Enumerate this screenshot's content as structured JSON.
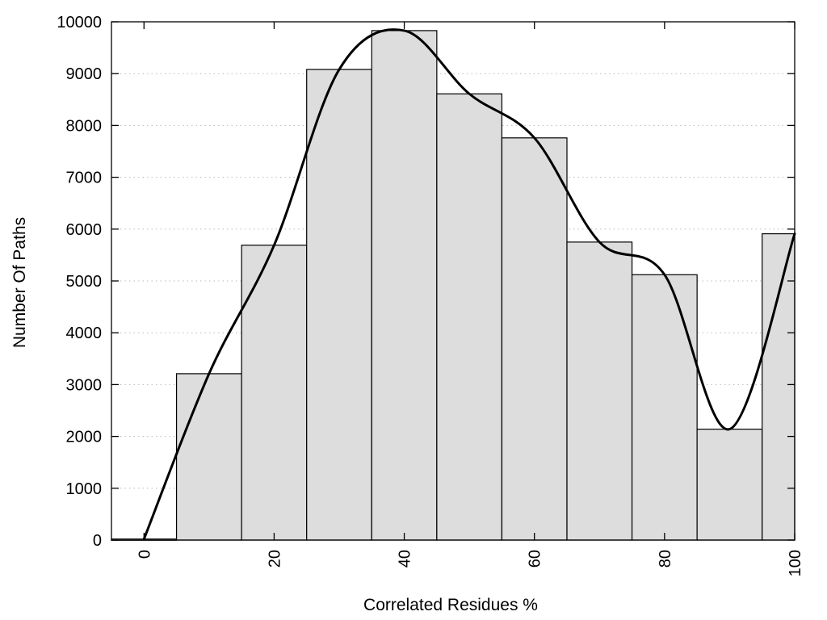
{
  "chart_data": {
    "type": "bar",
    "xlabel": "Correlated Residues %",
    "ylabel": "Number Of Paths",
    "xlim": [
      -5,
      100
    ],
    "ylim": [
      0,
      10000
    ],
    "grid": "horizontal dotted",
    "bar_width": 10,
    "bars": [
      {
        "x": 0,
        "value": 20
      },
      {
        "x": 10,
        "value": 3210
      },
      {
        "x": 20,
        "value": 5690
      },
      {
        "x": 30,
        "value": 9080
      },
      {
        "x": 40,
        "value": 9830
      },
      {
        "x": 50,
        "value": 8610
      },
      {
        "x": 60,
        "value": 7760
      },
      {
        "x": 70,
        "value": 5750
      },
      {
        "x": 80,
        "value": 5120
      },
      {
        "x": 90,
        "value": 2140
      },
      {
        "x": 100,
        "value": 5910
      }
    ],
    "curve": {
      "type": "line",
      "smooth": true,
      "x": [
        0,
        10,
        20,
        30,
        40,
        50,
        60,
        70,
        80,
        90,
        100
      ],
      "y": [
        20,
        3210,
        5690,
        9080,
        9830,
        8610,
        7760,
        5750,
        5120,
        2140,
        5910
      ]
    },
    "xticks": [
      "0",
      "20",
      "40",
      "60",
      "80",
      "100"
    ],
    "yticks": [
      "0",
      "1000",
      "2000",
      "3000",
      "4000",
      "5000",
      "6000",
      "7000",
      "8000",
      "9000",
      "10000"
    ],
    "colors": {
      "bar_fill": "#dddddd",
      "bar_edge": "#000000",
      "curve": "#000000",
      "grid": "#b9b9b9"
    }
  }
}
